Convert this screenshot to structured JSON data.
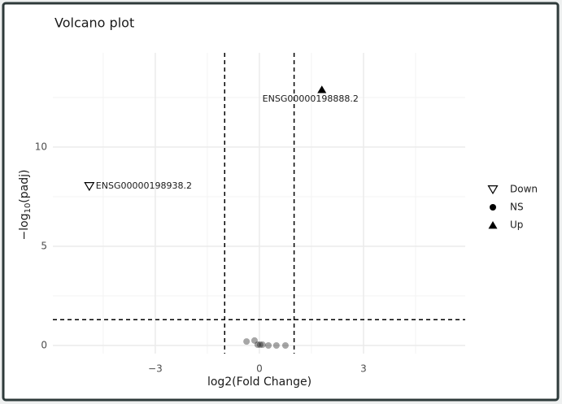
{
  "chart_data": {
    "type": "scatter",
    "title": "Volcano plot",
    "x_label": "log2(Fold Change)",
    "y_label": {
      "prefix": "−log",
      "subscript": "10",
      "suffix": "(padj)"
    },
    "xlim": [
      -5.95,
      5.93
    ],
    "ylim": [
      -0.41,
      14.75
    ],
    "xticks": [
      {
        "value": -3,
        "label": "−3"
      },
      0,
      3
    ],
    "yticks": [
      0,
      5,
      10
    ],
    "minor_xticks": [
      -4.5,
      -1.5,
      1.5,
      4.5
    ],
    "minor_yticks": [
      2.5,
      7.5,
      12.5
    ],
    "grid": true,
    "vlines": [
      -1,
      1
    ],
    "hline": 1.3,
    "legend": "right",
    "series": [
      {
        "name": "Down",
        "marker": "triangle-down-open",
        "color": "#000000",
        "opacity": 1,
        "x": [
          -4.9
        ],
        "values": [
          8.03
        ],
        "point_labels": [
          "ENSG00000198938.2"
        ]
      },
      {
        "name": "NS",
        "marker": "circle",
        "color": "#000000",
        "opacity": 0.35,
        "x": [
          -0.37,
          -0.14,
          -0.05,
          0.02,
          0.09,
          0.26,
          0.49,
          0.75
        ],
        "values": [
          0.2,
          0.25,
          0.04,
          0.04,
          0.04,
          0,
          0,
          0
        ]
      },
      {
        "name": "Up",
        "marker": "triangle-up",
        "color": "#000000",
        "opacity": 1,
        "x": [
          1.8
        ],
        "values": [
          12.9
        ],
        "point_labels": [
          "ENSG00000198888.2"
        ]
      }
    ]
  }
}
